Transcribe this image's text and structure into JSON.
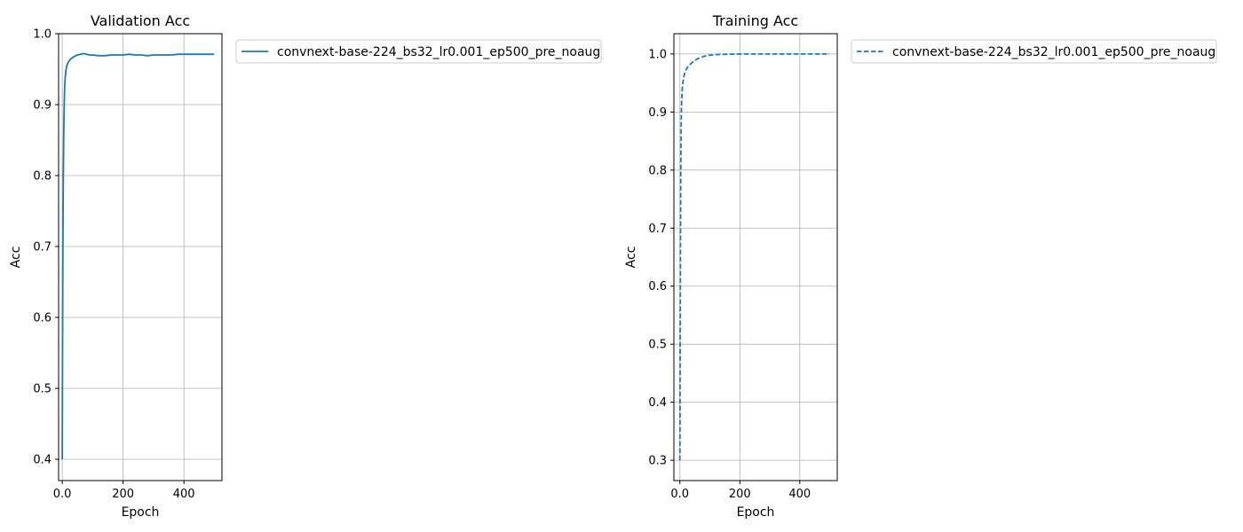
{
  "chart_data": [
    {
      "type": "line",
      "title": "Validation Acc",
      "xlabel": "Epoch",
      "ylabel": "Acc",
      "xlim": [
        -12,
        525
      ],
      "ylim": [
        0.37,
        1.0
      ],
      "xticks": [
        0,
        200,
        400
      ],
      "yticks": [
        0.4,
        0.5,
        0.6,
        0.7,
        0.8,
        0.9,
        1.0
      ],
      "grid": true,
      "legend": {
        "placement": "outside-upper-right"
      },
      "series": [
        {
          "name": "convnext-base-224_bs32_lr0.001_ep500_pre_noaug",
          "color": "#1f77b4",
          "linestyle": "solid",
          "x": [
            0,
            1,
            2,
            3,
            4,
            5,
            6,
            7,
            8,
            10,
            12,
            15,
            20,
            25,
            30,
            40,
            50,
            60,
            70,
            80,
            90,
            100,
            120,
            140,
            160,
            180,
            200,
            220,
            240,
            260,
            280,
            300,
            320,
            340,
            360,
            380,
            400,
            420,
            440,
            460,
            480,
            499
          ],
          "y": [
            0.4,
            0.55,
            0.68,
            0.77,
            0.82,
            0.86,
            0.89,
            0.91,
            0.925,
            0.94,
            0.948,
            0.955,
            0.96,
            0.963,
            0.965,
            0.968,
            0.97,
            0.971,
            0.972,
            0.971,
            0.97,
            0.97,
            0.969,
            0.969,
            0.97,
            0.97,
            0.97,
            0.971,
            0.97,
            0.97,
            0.969,
            0.97,
            0.97,
            0.97,
            0.97,
            0.971,
            0.971,
            0.971,
            0.971,
            0.971,
            0.971,
            0.971
          ]
        }
      ]
    },
    {
      "type": "line",
      "title": "Training Acc",
      "xlabel": "Epoch",
      "ylabel": "Acc",
      "xlim": [
        -20,
        525
      ],
      "ylim": [
        0.265,
        1.035
      ],
      "xticks": [
        0,
        200,
        400
      ],
      "yticks": [
        0.3,
        0.4,
        0.5,
        0.6,
        0.7,
        0.8,
        0.9,
        1.0
      ],
      "grid": true,
      "legend": {
        "placement": "outside-upper-right"
      },
      "series": [
        {
          "name": "convnext-base-224_bs32_lr0.001_ep500_pre_noaug",
          "color": "#1f77b4",
          "linestyle": "dashed",
          "x": [
            0,
            1,
            2,
            3,
            4,
            5,
            6,
            8,
            10,
            12,
            15,
            20,
            25,
            30,
            40,
            50,
            60,
            70,
            80,
            100,
            120,
            150,
            200,
            250,
            300,
            350,
            400,
            450,
            499
          ],
          "y": [
            0.3,
            0.5,
            0.68,
            0.8,
            0.86,
            0.9,
            0.92,
            0.94,
            0.95,
            0.958,
            0.965,
            0.972,
            0.977,
            0.98,
            0.985,
            0.989,
            0.992,
            0.994,
            0.996,
            0.998,
            0.999,
            0.9995,
            1.0,
            1.0,
            1.0,
            1.0,
            1.0,
            1.0,
            1.0
          ]
        }
      ]
    }
  ]
}
